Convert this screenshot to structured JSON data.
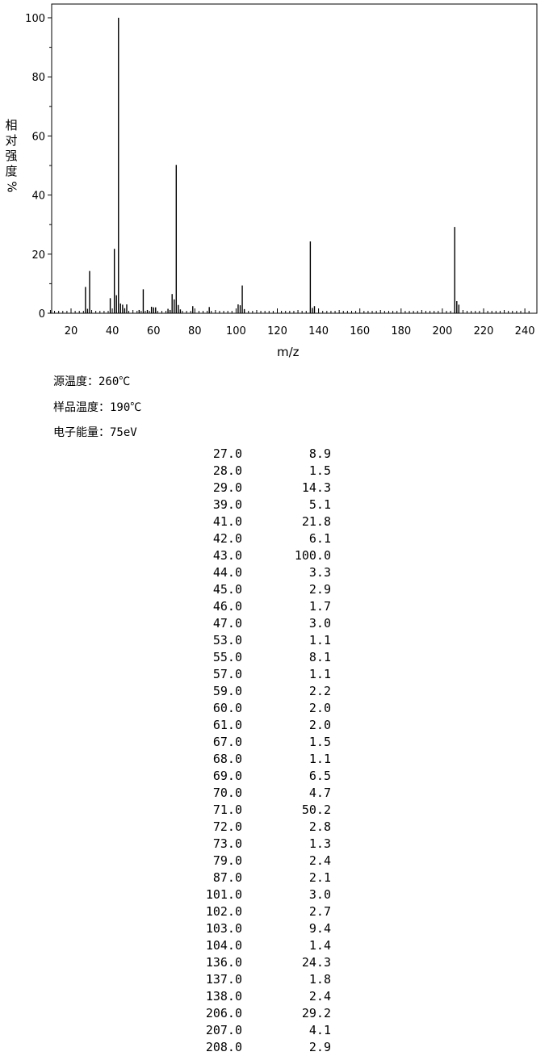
{
  "chart_data": {
    "type": "bar",
    "title": "",
    "xlabel": "m/z",
    "ylabel_chars": [
      "相",
      "对",
      "强",
      "度",
      "%"
    ],
    "xlim": [
      9,
      243
    ],
    "ylim": [
      0,
      100
    ],
    "xticks": [
      20,
      40,
      60,
      80,
      100,
      120,
      140,
      160,
      180,
      200,
      220,
      240
    ],
    "yticks": [
      0,
      20,
      40,
      60,
      80,
      100
    ],
    "grid": false,
    "x": [
      27,
      28,
      29,
      39,
      41,
      42,
      43,
      44,
      45,
      46,
      47,
      53,
      55,
      57,
      59,
      60,
      61,
      67,
      68,
      69,
      70,
      71,
      72,
      73,
      79,
      87,
      101,
      102,
      103,
      104,
      136,
      137,
      138,
      206,
      207,
      208
    ],
    "values": [
      8.9,
      1.5,
      14.3,
      5.1,
      21.8,
      6.1,
      100.0,
      3.3,
      2.9,
      1.7,
      3.0,
      1.1,
      8.1,
      1.1,
      2.2,
      2.0,
      2.0,
      1.5,
      1.1,
      6.5,
      4.7,
      50.2,
      2.8,
      1.3,
      2.4,
      2.1,
      3.0,
      2.7,
      9.4,
      1.4,
      24.3,
      1.8,
      2.4,
      29.2,
      4.1,
      2.9
    ]
  },
  "params": [
    {
      "label": "源温度：",
      "value": "260℃"
    },
    {
      "label": "样品温度：",
      "value": "190℃"
    },
    {
      "label": "电子能量：",
      "value": "75eV"
    }
  ],
  "peaks": [
    {
      "mz": "27.0",
      "abundance": "8.9"
    },
    {
      "mz": "28.0",
      "abundance": "1.5"
    },
    {
      "mz": "29.0",
      "abundance": "14.3"
    },
    {
      "mz": "39.0",
      "abundance": "5.1"
    },
    {
      "mz": "41.0",
      "abundance": "21.8"
    },
    {
      "mz": "42.0",
      "abundance": "6.1"
    },
    {
      "mz": "43.0",
      "abundance": "100.0"
    },
    {
      "mz": "44.0",
      "abundance": "3.3"
    },
    {
      "mz": "45.0",
      "abundance": "2.9"
    },
    {
      "mz": "46.0",
      "abundance": "1.7"
    },
    {
      "mz": "47.0",
      "abundance": "3.0"
    },
    {
      "mz": "53.0",
      "abundance": "1.1"
    },
    {
      "mz": "55.0",
      "abundance": "8.1"
    },
    {
      "mz": "57.0",
      "abundance": "1.1"
    },
    {
      "mz": "59.0",
      "abundance": "2.2"
    },
    {
      "mz": "60.0",
      "abundance": "2.0"
    },
    {
      "mz": "61.0",
      "abundance": "2.0"
    },
    {
      "mz": "67.0",
      "abundance": "1.5"
    },
    {
      "mz": "68.0",
      "abundance": "1.1"
    },
    {
      "mz": "69.0",
      "abundance": "6.5"
    },
    {
      "mz": "70.0",
      "abundance": "4.7"
    },
    {
      "mz": "71.0",
      "abundance": "50.2"
    },
    {
      "mz": "72.0",
      "abundance": "2.8"
    },
    {
      "mz": "73.0",
      "abundance": "1.3"
    },
    {
      "mz": "79.0",
      "abundance": "2.4"
    },
    {
      "mz": "87.0",
      "abundance": "2.1"
    },
    {
      "mz": "101.0",
      "abundance": "3.0"
    },
    {
      "mz": "102.0",
      "abundance": "2.7"
    },
    {
      "mz": "103.0",
      "abundance": "9.4"
    },
    {
      "mz": "104.0",
      "abundance": "1.4"
    },
    {
      "mz": "136.0",
      "abundance": "24.3"
    },
    {
      "mz": "137.0",
      "abundance": "1.8"
    },
    {
      "mz": "138.0",
      "abundance": "2.4"
    },
    {
      "mz": "206.0",
      "abundance": "29.2"
    },
    {
      "mz": "207.0",
      "abundance": "4.1"
    },
    {
      "mz": "208.0",
      "abundance": "2.9"
    }
  ]
}
